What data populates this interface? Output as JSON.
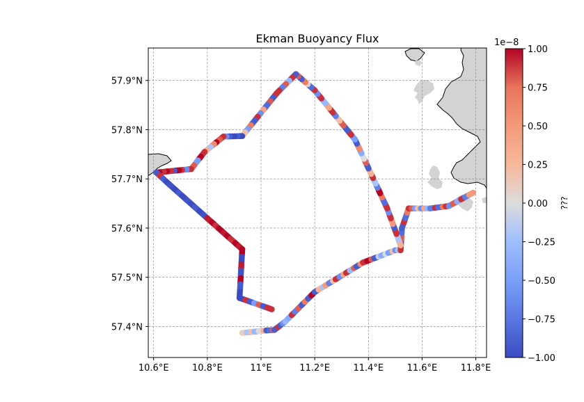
{
  "map": {
    "title": "Ekman Buoyancy Flux",
    "lon_range": [
      10.58,
      11.84
    ],
    "lat_range": [
      57.337,
      57.966
    ],
    "lon_ticks": [
      {
        "value": 10.6,
        "label": "10.6°E"
      },
      {
        "value": 10.8,
        "label": "10.8°E"
      },
      {
        "value": 11.0,
        "label": "11°E"
      },
      {
        "value": 11.2,
        "label": "11.2°E"
      },
      {
        "value": 11.4,
        "label": "11.4°E"
      },
      {
        "value": 11.6,
        "label": "11.6°E"
      },
      {
        "value": 11.8,
        "label": "11.8°E"
      }
    ],
    "lat_ticks": [
      {
        "value": 57.4,
        "label": "57.4°N"
      },
      {
        "value": 57.5,
        "label": "57.5°N"
      },
      {
        "value": 57.6,
        "label": "57.6°N"
      },
      {
        "value": 57.7,
        "label": "57.7°N"
      },
      {
        "value": 57.8,
        "label": "57.8°N"
      },
      {
        "value": 57.9,
        "label": "57.9°N"
      }
    ],
    "gridlines": true,
    "land_color": "#d3d3d3",
    "colorbar": {
      "label": "???",
      "scale_text": "1e−8",
      "range": [
        -1.0,
        1.0
      ],
      "ticks": [
        {
          "value": 1.0,
          "label": "1.00"
        },
        {
          "value": 0.75,
          "label": "0.75"
        },
        {
          "value": 0.5,
          "label": "0.50"
        },
        {
          "value": 0.25,
          "label": "0.25"
        },
        {
          "value": 0.0,
          "label": "0.00"
        },
        {
          "value": -0.25,
          "label": "−0.25"
        },
        {
          "value": -0.5,
          "label": "−0.50"
        },
        {
          "value": -0.75,
          "label": "−0.75"
        },
        {
          "value": -1.0,
          "label": "−1.00"
        }
      ],
      "colormap": "coolwarm"
    }
  },
  "chart_data": {
    "type": "scatter",
    "title": "Ekman Buoyancy Flux",
    "xlabel": "",
    "ylabel": "",
    "xlim": [
      10.58,
      11.84
    ],
    "ylim": [
      57.337,
      57.966
    ],
    "color_range": [
      -1.0,
      1.0
    ],
    "track_segments": [
      {
        "from": [
          10.93,
          57.387
        ],
        "to": [
          11.02,
          57.392
        ],
        "values": [
          0.1,
          -0.2,
          0.2,
          -0.3,
          0.0,
          0.3
        ]
      },
      {
        "from": [
          11.02,
          57.392
        ],
        "to": [
          11.05,
          57.393
        ],
        "values": [
          -0.9,
          -0.8,
          0.8
        ]
      },
      {
        "from": [
          11.05,
          57.393
        ],
        "to": [
          11.09,
          57.41
        ],
        "values": [
          -0.9,
          0.9,
          -0.9,
          -0.6
        ]
      },
      {
        "from": [
          11.09,
          57.41
        ],
        "to": [
          11.2,
          57.47
        ],
        "values": [
          -0.3,
          -0.4,
          0.9,
          -0.7,
          0.8,
          -0.9,
          0.7,
          -0.9,
          1.0
        ]
      },
      {
        "from": [
          11.2,
          57.47
        ],
        "to": [
          11.38,
          57.53
        ],
        "values": [
          -0.9,
          0.3,
          -0.2,
          0.5,
          -0.7,
          0.2,
          0.9,
          -0.6,
          0.4,
          0.9,
          -0.3,
          0.8,
          -0.9,
          0.6
        ]
      },
      {
        "from": [
          11.38,
          57.53
        ],
        "to": [
          11.5,
          57.555
        ],
        "values": [
          0.9,
          1.0,
          0.8,
          -0.9,
          -0.1,
          -0.4,
          0.0,
          -0.5,
          0.2
        ]
      },
      {
        "from": [
          11.5,
          57.555
        ],
        "to": [
          11.52,
          57.555
        ],
        "values": [
          -0.6,
          -0.2
        ]
      },
      {
        "from": [
          11.52,
          57.555
        ],
        "to": [
          11.525,
          57.6
        ],
        "values": [
          0.9,
          -0.9,
          0.8,
          -0.8
        ]
      },
      {
        "from": [
          11.525,
          57.6
        ],
        "to": [
          11.55,
          57.64
        ],
        "values": [
          -0.9,
          0.9,
          -0.8,
          0.7
        ]
      },
      {
        "from": [
          11.55,
          57.64
        ],
        "to": [
          11.63,
          57.64
        ],
        "values": [
          0.9,
          0.8,
          -0.5,
          0.2,
          -0.6,
          0.4,
          -0.3
        ]
      },
      {
        "from": [
          11.63,
          57.64
        ],
        "to": [
          11.7,
          57.645
        ],
        "values": [
          -0.7,
          0.9,
          -0.8,
          0.7,
          0.9
        ]
      },
      {
        "from": [
          11.7,
          57.645
        ],
        "to": [
          11.79,
          57.672
        ],
        "values": [
          -0.6,
          0.8,
          -0.4,
          0.9,
          -0.7,
          0.5
        ]
      },
      {
        "from": [
          11.52,
          57.565
        ],
        "to": [
          11.47,
          57.64
        ],
        "values": [
          0.3,
          -0.2,
          0.9,
          -0.9,
          0.5,
          0.9,
          -0.6
        ]
      },
      {
        "from": [
          11.47,
          57.64
        ],
        "to": [
          11.35,
          57.78
        ],
        "values": [
          0.9,
          -0.8,
          0.7,
          1.0,
          -0.7,
          -0.2,
          0.9,
          0.3,
          -0.9,
          0.8,
          0.0,
          -0.4,
          0.6,
          -0.9
        ]
      },
      {
        "from": [
          11.35,
          57.78
        ],
        "to": [
          11.2,
          57.88
        ],
        "values": [
          -0.5,
          0.9,
          -0.9,
          0.8,
          0.2,
          -0.7,
          0.9,
          0.4,
          -0.3,
          0.9,
          -0.6
        ]
      },
      {
        "from": [
          11.2,
          57.88
        ],
        "to": [
          11.13,
          57.913
        ],
        "values": [
          0.9,
          -0.8,
          0.1,
          0.7,
          -0.9,
          0.8
        ]
      },
      {
        "from": [
          11.13,
          57.913
        ],
        "to": [
          11.06,
          57.875
        ],
        "values": [
          -0.9,
          0.9,
          -0.3,
          0.8,
          -0.7,
          0.9
        ]
      },
      {
        "from": [
          11.06,
          57.875
        ],
        "to": [
          10.93,
          57.787
        ],
        "values": [
          0.9,
          -0.9,
          0.8,
          -0.8,
          0.4,
          -0.6,
          0.9,
          -0.9,
          0.7,
          -0.5,
          0.2
        ]
      },
      {
        "from": [
          10.93,
          57.787
        ],
        "to": [
          10.86,
          57.786
        ],
        "values": [
          -1.0,
          -0.9,
          -1.0,
          -0.9,
          -0.6
        ]
      },
      {
        "from": [
          10.86,
          57.786
        ],
        "to": [
          10.79,
          57.755
        ],
        "values": [
          0.9,
          0.8,
          1.0,
          0.6,
          -0.2,
          0.3
        ]
      },
      {
        "from": [
          10.79,
          57.755
        ],
        "to": [
          10.74,
          57.72
        ],
        "values": [
          0.9,
          1.0,
          -0.5,
          0.8
        ]
      },
      {
        "from": [
          10.74,
          57.72
        ],
        "to": [
          10.61,
          57.713
        ],
        "values": [
          0.9,
          -0.6,
          0.9,
          1.0,
          -0.9,
          0.9,
          1.0,
          0.9,
          1.0
        ]
      },
      {
        "from": [
          10.61,
          57.713
        ],
        "to": [
          10.66,
          57.688
        ],
        "values": [
          -0.9,
          0.9,
          -0.9,
          -1.0
        ]
      },
      {
        "from": [
          10.66,
          57.688
        ],
        "to": [
          10.8,
          57.62
        ],
        "values": [
          -0.95,
          -1.0,
          -0.9,
          -1.0,
          -0.95,
          -1.0,
          -0.9,
          -1.0,
          -0.95
        ]
      },
      {
        "from": [
          10.8,
          57.62
        ],
        "to": [
          10.93,
          57.557
        ],
        "values": [
          0.95,
          1.0,
          0.9,
          1.0,
          0.95,
          1.0,
          0.9,
          1.0,
          0.95
        ]
      },
      {
        "from": [
          10.93,
          57.557
        ],
        "to": [
          10.92,
          57.458
        ],
        "values": [
          1.0,
          -1.0,
          0.95,
          -0.95,
          1.0,
          -0.9,
          -1.0
        ]
      },
      {
        "from": [
          10.92,
          57.458
        ],
        "to": [
          11.04,
          57.435
        ],
        "values": [
          -1.0,
          0.9,
          -0.9,
          -0.5,
          0.8,
          -0.9,
          0.9
        ]
      }
    ]
  }
}
